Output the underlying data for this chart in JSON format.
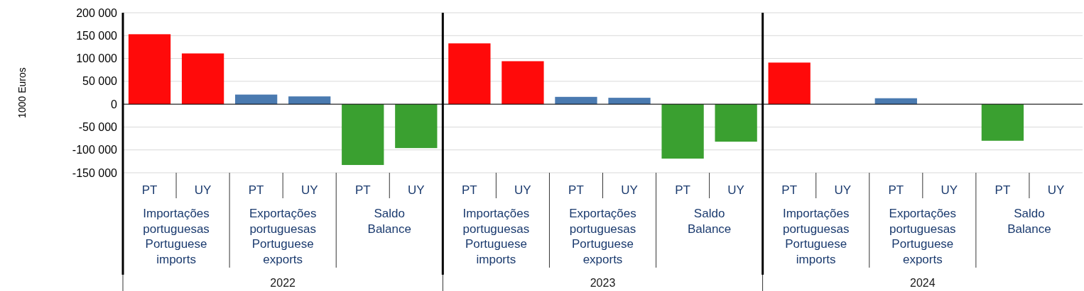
{
  "chart_data": {
    "type": "bar",
    "ylabel": "1000 Euros",
    "categories": [
      "PT",
      "UY",
      "PT",
      "UY",
      "PT",
      "UY",
      "PT",
      "UY",
      "PT",
      "UY",
      "PT",
      "UY",
      "PT",
      "UY",
      "PT",
      "UY",
      "PT",
      "UY"
    ],
    "series": [
      {
        "color": "#ff0a0a",
        "values": [
          153000,
          111000,
          null,
          null,
          null,
          null,
          133000,
          94000,
          null,
          null,
          null,
          null,
          91000,
          null,
          null,
          null,
          null,
          null
        ]
      },
      {
        "color": "#4a7ab0",
        "values": [
          null,
          null,
          21000,
          17000,
          null,
          null,
          null,
          null,
          16000,
          14000,
          null,
          null,
          null,
          null,
          13000,
          null,
          null,
          null
        ]
      },
      {
        "color": "#3aa030",
        "values": [
          null,
          null,
          null,
          null,
          -133000,
          -96000,
          null,
          null,
          null,
          null,
          -119000,
          -82000,
          null,
          null,
          null,
          null,
          -80000,
          null
        ]
      }
    ],
    "ylim": [
      -150000,
      200000
    ],
    "yticks": [
      {
        "value": -150000,
        "label": "-150 000"
      },
      {
        "value": -100000,
        "label": "-100 000"
      },
      {
        "value": -50000,
        "label": "-50 000"
      },
      0,
      {
        "value": 50000,
        "label": "50 000"
      },
      {
        "value": 100000,
        "label": "100 000"
      },
      {
        "value": 150000,
        "label": "150 000"
      },
      {
        "value": 200000,
        "label": "200 000"
      }
    ],
    "grid": "y",
    "annotations": [
      "Importações portuguesas Portuguese imports",
      "Exportações portuguesas Portuguese exports",
      "Saldo Balance",
      "Importações portuguesas Portuguese imports",
      "Exportações portuguesas Portuguese exports",
      "Saldo Balance",
      "Importações portuguesas Portuguese imports",
      "Exportações portuguesas Portuguese exports",
      "Saldo Balance",
      "2022",
      "2023",
      "2024"
    ]
  }
}
